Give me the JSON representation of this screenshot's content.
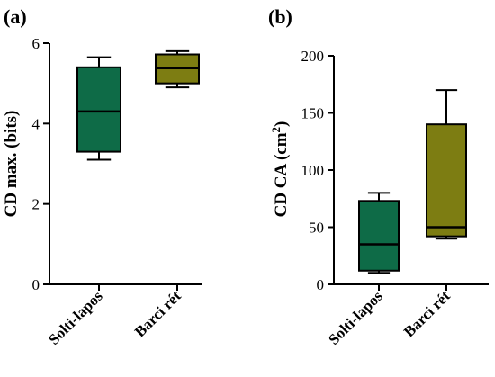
{
  "chart_data": [
    {
      "type": "box",
      "panel_label": "(a)",
      "ylabel": "CD max. (bits)",
      "ylabel_unit_sup": "",
      "ylim": [
        0,
        6
      ],
      "yticks": [
        0,
        2,
        4,
        6
      ],
      "grid": false,
      "categories": [
        "Solti-lapos",
        "Barci rét"
      ],
      "series": [
        {
          "category": "Solti-lapos",
          "min": 3.1,
          "q1": 3.3,
          "median": 4.3,
          "q3": 5.4,
          "max": 5.65,
          "color": "#0e6b47"
        },
        {
          "category": "Barci rét",
          "min": 4.9,
          "q1": 5.0,
          "median": 5.38,
          "q3": 5.72,
          "max": 5.8,
          "color": "#7d7d12"
        }
      ]
    },
    {
      "type": "box",
      "panel_label": "(b)",
      "ylabel": "CD CA (cm",
      "ylabel_unit_sup": "2",
      "ylabel_suffix": ")",
      "ylim": [
        0,
        200
      ],
      "yticks": [
        0,
        50,
        100,
        150,
        200
      ],
      "grid": false,
      "categories": [
        "Solti-lapos",
        "Barci rét"
      ],
      "series": [
        {
          "category": "Solti-lapos",
          "min": 10,
          "q1": 12,
          "median": 35,
          "q3": 73,
          "max": 80,
          "color": "#0e6b47"
        },
        {
          "category": "Barci rét",
          "min": 40,
          "q1": 42,
          "median": 50,
          "q3": 140,
          "max": 170,
          "color": "#7d7d12"
        }
      ]
    }
  ]
}
